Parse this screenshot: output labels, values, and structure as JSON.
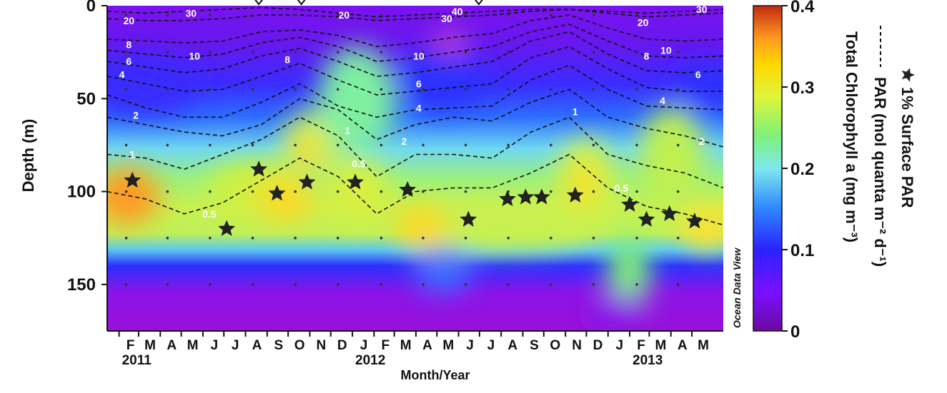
{
  "chart_data": {
    "type": "heatmap",
    "title": "",
    "xlabel": "Month/Year",
    "ylabel": "Depth (m)",
    "y_range": [
      0,
      175
    ],
    "y_ticks": [
      "0",
      "50",
      "100",
      "150"
    ],
    "x_range": [
      "2011-01-15",
      "2013-06-15"
    ],
    "month_ticks": [
      {
        "date": "2011-02-01",
        "label": "F"
      },
      {
        "date": "2011-03-01",
        "label": "M"
      },
      {
        "date": "2011-04-01",
        "label": "A"
      },
      {
        "date": "2011-05-01",
        "label": "M"
      },
      {
        "date": "2011-06-01",
        "label": "J"
      },
      {
        "date": "2011-07-01",
        "label": "J"
      },
      {
        "date": "2011-08-01",
        "label": "A"
      },
      {
        "date": "2011-09-01",
        "label": "S"
      },
      {
        "date": "2011-10-01",
        "label": "O"
      },
      {
        "date": "2011-11-01",
        "label": "N"
      },
      {
        "date": "2011-12-01",
        "label": "D"
      },
      {
        "date": "2012-01-01",
        "label": "J"
      },
      {
        "date": "2012-02-01",
        "label": "F"
      },
      {
        "date": "2012-03-01",
        "label": "M"
      },
      {
        "date": "2012-04-01",
        "label": "A"
      },
      {
        "date": "2012-05-01",
        "label": "M"
      },
      {
        "date": "2012-06-01",
        "label": "J"
      },
      {
        "date": "2012-07-01",
        "label": "J"
      },
      {
        "date": "2012-08-01",
        "label": "A"
      },
      {
        "date": "2012-09-01",
        "label": "S"
      },
      {
        "date": "2012-10-01",
        "label": "O"
      },
      {
        "date": "2012-11-01",
        "label": "N"
      },
      {
        "date": "2012-12-01",
        "label": "D"
      },
      {
        "date": "2013-01-01",
        "label": "J"
      },
      {
        "date": "2013-02-01",
        "label": "F"
      },
      {
        "date": "2013-03-01",
        "label": "M"
      },
      {
        "date": "2013-04-01",
        "label": "A"
      },
      {
        "date": "2013-05-01",
        "label": "M"
      }
    ],
    "year_labels": [
      {
        "date": "2011-02-01",
        "label": "2011"
      },
      {
        "date": "2012-01-01",
        "label": "2012"
      },
      {
        "date": "2013-02-01",
        "label": "2013"
      }
    ],
    "colorbar": {
      "label": "Total Chlorophyll a (mg m⁻³)",
      "range": [
        0,
        0.4
      ],
      "ticks": [
        "0",
        "0.1",
        "0.2",
        "0.3",
        "0.4"
      ]
    },
    "legend": [
      {
        "symbol": "star",
        "label": "1% Surface PAR"
      },
      {
        "symbol": "dashed-line",
        "label": "PAR (mol quanta m⁻² d⁻¹)"
      }
    ],
    "series": [
      {
        "name": "1% Surface PAR",
        "points": [
          {
            "date": "2011-02-20",
            "depth": 94
          },
          {
            "date": "2011-07-05",
            "depth": 120
          },
          {
            "date": "2011-08-20",
            "depth": 88
          },
          {
            "date": "2011-09-15",
            "depth": 101
          },
          {
            "date": "2011-10-28",
            "depth": 95
          },
          {
            "date": "2012-01-05",
            "depth": 95
          },
          {
            "date": "2012-03-20",
            "depth": 99
          },
          {
            "date": "2012-06-15",
            "depth": 115
          },
          {
            "date": "2012-08-10",
            "depth": 104
          },
          {
            "date": "2012-09-05",
            "depth": 103
          },
          {
            "date": "2012-09-28",
            "depth": 103
          },
          {
            "date": "2012-11-15",
            "depth": 102
          },
          {
            "date": "2013-02-01",
            "depth": 107
          },
          {
            "date": "2013-02-25",
            "depth": 115
          },
          {
            "date": "2013-03-30",
            "depth": 112
          },
          {
            "date": "2013-05-05",
            "depth": 116
          }
        ]
      }
    ],
    "contour_labels": [
      {
        "text": "30",
        "date": "2011-05-15",
        "depth": 4
      },
      {
        "text": "20",
        "date": "2011-02-15",
        "depth": 8
      },
      {
        "text": "20",
        "date": "2011-12-20",
        "depth": 5
      },
      {
        "text": "8",
        "date": "2011-02-15",
        "depth": 21
      },
      {
        "text": "6",
        "date": "2011-02-15",
        "depth": 30
      },
      {
        "text": "4",
        "date": "2011-02-05",
        "depth": 37
      },
      {
        "text": "10",
        "date": "2011-05-20",
        "depth": 27
      },
      {
        "text": "8",
        "date": "2011-09-30",
        "depth": 29
      },
      {
        "text": "2",
        "date": "2011-02-25",
        "depth": 59
      },
      {
        "text": "1",
        "date": "2011-02-20",
        "depth": 80
      },
      {
        "text": "0.5",
        "date": "2011-06-10",
        "depth": 112
      },
      {
        "text": "1",
        "date": "2011-12-25",
        "depth": 67
      },
      {
        "text": "0.5",
        "date": "2012-01-10",
        "depth": 85
      },
      {
        "text": "30",
        "date": "2012-05-15",
        "depth": 7
      },
      {
        "text": "40",
        "date": "2012-05-30",
        "depth": 3
      },
      {
        "text": "10",
        "date": "2012-04-05",
        "depth": 27
      },
      {
        "text": "6",
        "date": "2012-04-05",
        "depth": 42
      },
      {
        "text": "4",
        "date": "2012-04-05",
        "depth": 55
      },
      {
        "text": "2",
        "date": "2012-03-15",
        "depth": 73
      },
      {
        "text": "1",
        "date": "2012-11-15",
        "depth": 57
      },
      {
        "text": "0.5",
        "date": "2013-01-20",
        "depth": 98
      },
      {
        "text": "30",
        "date": "2013-05-15",
        "depth": 2
      },
      {
        "text": "20",
        "date": "2013-02-20",
        "depth": 9
      },
      {
        "text": "8",
        "date": "2013-02-25",
        "depth": 27
      },
      {
        "text": "10",
        "date": "2013-03-25",
        "depth": 24
      },
      {
        "text": "6",
        "date": "2013-05-10",
        "depth": 37
      },
      {
        "text": "4",
        "date": "2013-03-20",
        "depth": 51
      },
      {
        "text": "2",
        "date": "2013-05-15",
        "depth": 73
      }
    ],
    "triangles": [
      {
        "date": "2011-08-20"
      },
      {
        "date": "2011-10-20"
      },
      {
        "date": "2012-06-30"
      }
    ],
    "watermark": "Ocean Data View"
  }
}
